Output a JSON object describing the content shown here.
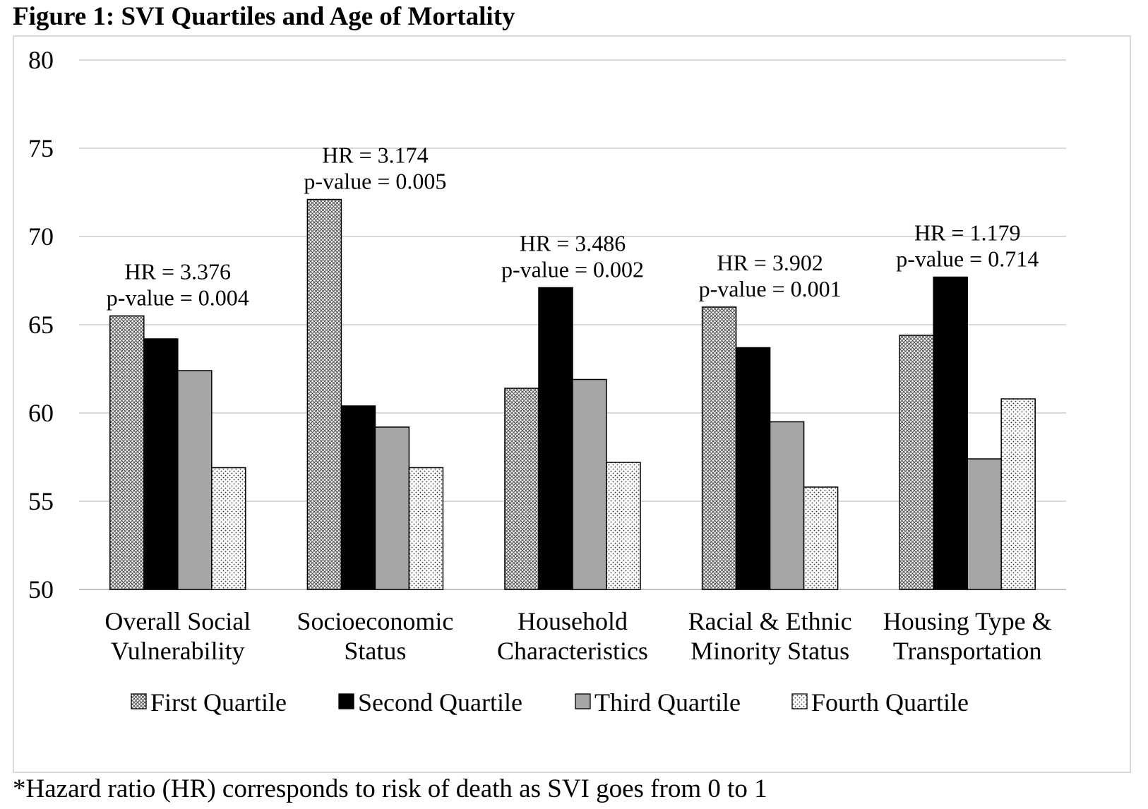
{
  "figure_title": "Figure 1: SVI Quartiles and Age of Mortality",
  "footnote": "*Hazard ratio (HR) corresponds to risk of death as SVI goes from 0 to 1",
  "chart_data": {
    "type": "bar",
    "title": "Figure 1: SVI Quartiles and Age of Mortality",
    "xlabel": "",
    "ylabel": "",
    "ylim": [
      50,
      80
    ],
    "yticks": [
      50,
      55,
      60,
      65,
      70,
      75,
      80
    ],
    "grid": true,
    "legend_position": "bottom",
    "categories": [
      [
        "Overall Social",
        "Vulnerability"
      ],
      [
        "Socioeconomic",
        "Status"
      ],
      [
        "Household",
        "Characteristics"
      ],
      [
        "Racial & Ethnic",
        "Minority Status"
      ],
      [
        "Housing Type &",
        "Transportation"
      ]
    ],
    "series": [
      {
        "name": "First Quartile",
        "pattern": "crosshatch",
        "color": "#d0d0d0",
        "values": [
          65.5,
          72.1,
          61.4,
          66.0,
          64.4
        ]
      },
      {
        "name": "Second Quartile",
        "pattern": "solid",
        "color": "#000000",
        "values": [
          64.2,
          60.4,
          67.1,
          63.7,
          67.7
        ]
      },
      {
        "name": "Third Quartile",
        "pattern": "solid",
        "color": "#a6a6a6",
        "values": [
          62.4,
          59.2,
          61.9,
          59.5,
          57.4
        ]
      },
      {
        "name": "Fourth Quartile",
        "pattern": "dots",
        "color": "#ffffff",
        "values": [
          56.9,
          56.9,
          57.2,
          55.8,
          60.8
        ]
      }
    ],
    "annotations": [
      {
        "lines": [
          "HR = 3.376",
          "p-value = 0.004"
        ]
      },
      {
        "lines": [
          "HR = 3.174",
          "p-value = 0.005"
        ]
      },
      {
        "lines": [
          "HR = 3.486",
          "p-value = 0.002"
        ]
      },
      {
        "lines": [
          "HR = 3.902",
          "p-value = 0.001"
        ]
      },
      {
        "lines": [
          "HR = 1.179",
          "p-value = 0.714"
        ]
      }
    ],
    "colors": {
      "gridline": "#d9d9d9",
      "axis": "#bfbfbf"
    }
  }
}
